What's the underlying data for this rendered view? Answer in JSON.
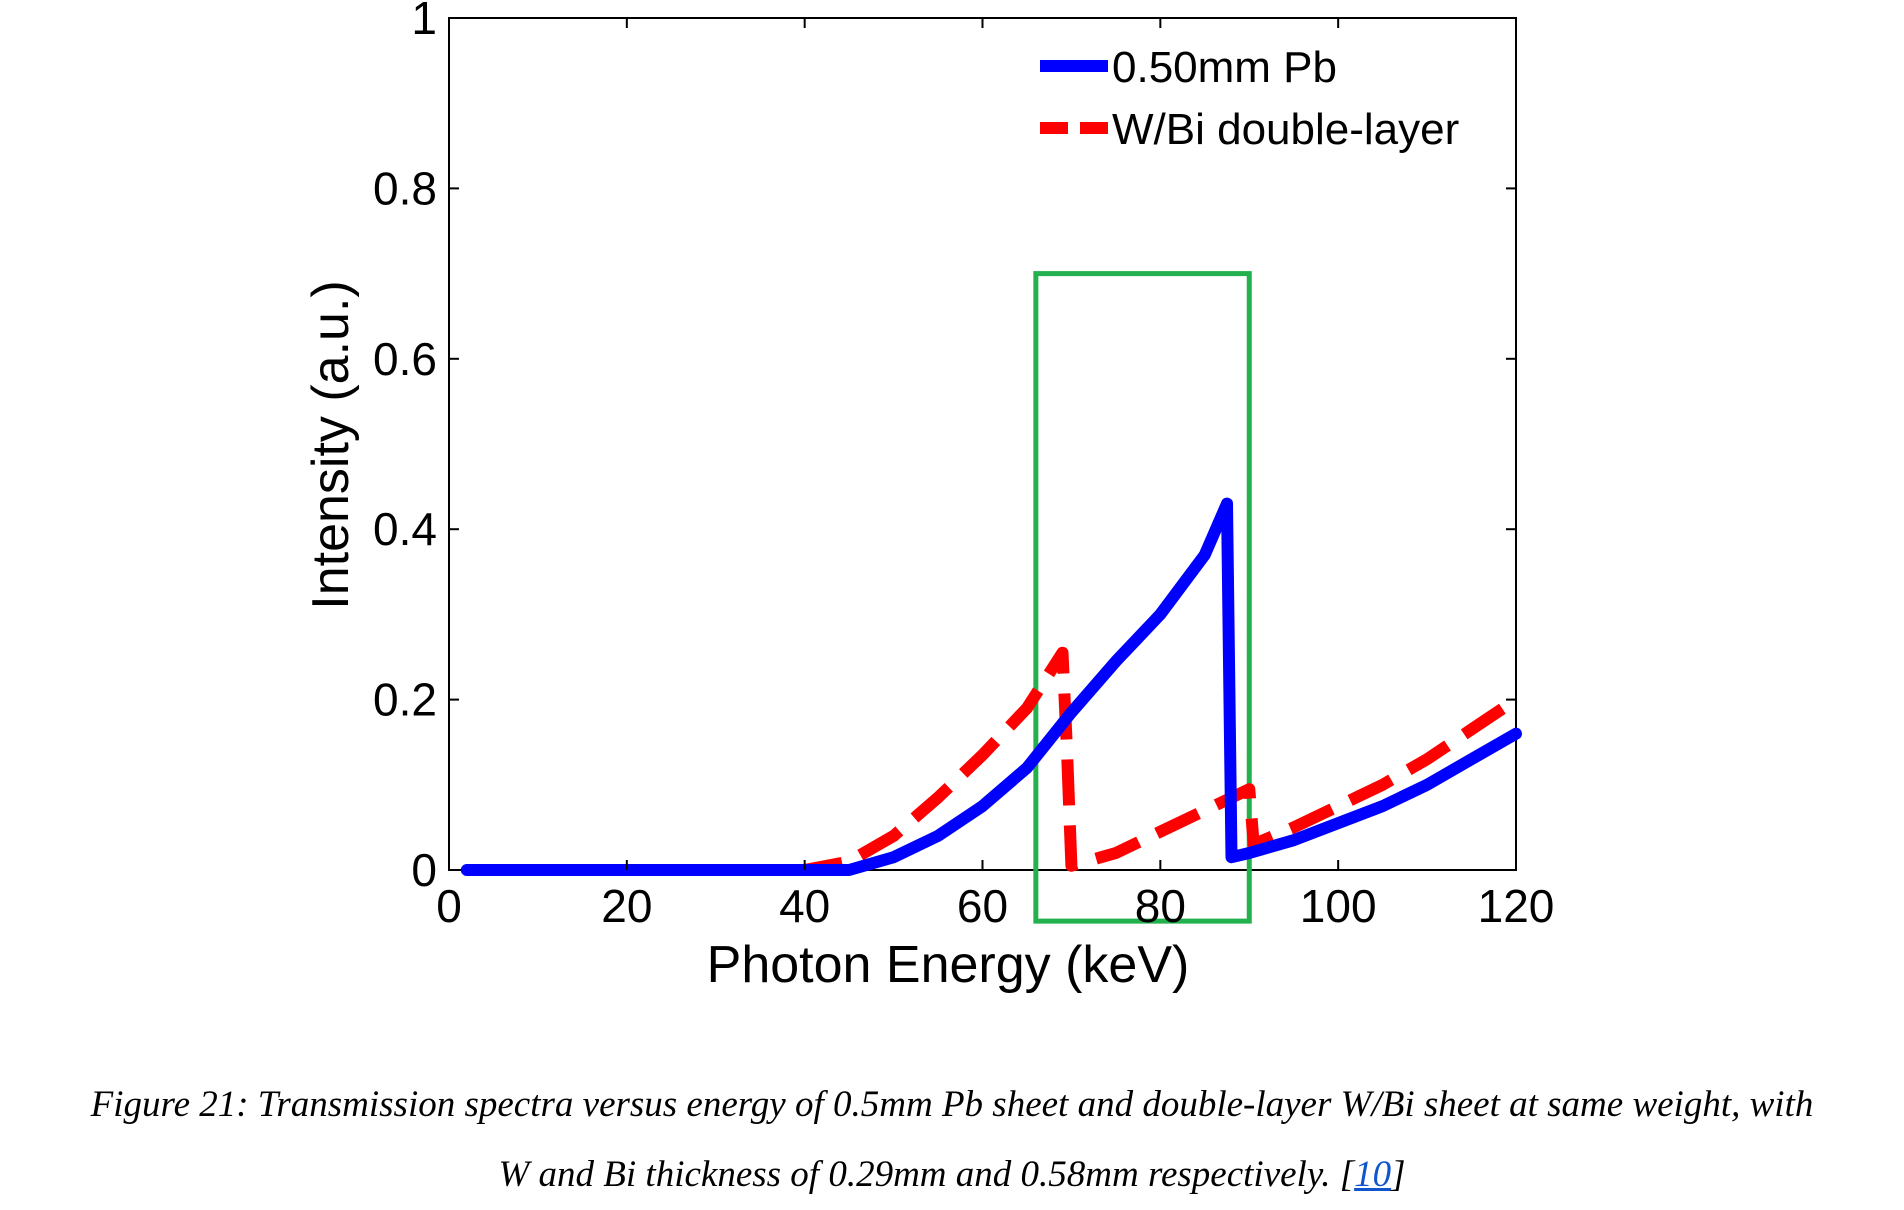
{
  "chart_data": {
    "type": "line",
    "title": "",
    "xlabel": "Photon Energy (keV)",
    "ylabel": "Intensity (a.u.)",
    "xlim": [
      0,
      120
    ],
    "ylim": [
      0,
      1
    ],
    "xticks": [
      0,
      20,
      40,
      60,
      80,
      100,
      120
    ],
    "yticks": [
      0,
      0.2,
      0.4,
      0.6,
      0.8,
      1
    ],
    "ytick_labels": [
      "0",
      "0.2",
      "0.4",
      "0.6",
      "0.8",
      "1"
    ],
    "grid": false,
    "legend_position": "top-right",
    "series": [
      {
        "name": "0.50mm Pb",
        "color": "#0000ff",
        "style": "solid",
        "x": [
          2,
          45,
          50,
          55,
          60,
          65,
          70,
          75,
          80,
          85,
          87.5,
          88,
          90,
          95,
          100,
          105,
          110,
          115,
          120
        ],
        "y": [
          0,
          0,
          0.015,
          0.04,
          0.075,
          0.12,
          0.185,
          0.245,
          0.3,
          0.37,
          0.43,
          0.015,
          0.02,
          0.035,
          0.055,
          0.075,
          0.1,
          0.13,
          0.16
        ]
      },
      {
        "name": "W/Bi double-layer",
        "color": "#ff0000",
        "style": "dashed",
        "x": [
          2,
          40,
          45,
          50,
          55,
          60,
          65,
          69,
          69.5,
          70,
          75,
          80,
          85,
          90,
          90.5,
          95,
          100,
          105,
          110,
          115,
          120
        ],
        "y": [
          0,
          0,
          0.01,
          0.04,
          0.085,
          0.135,
          0.19,
          0.255,
          0.14,
          0.005,
          0.02,
          0.045,
          0.07,
          0.095,
          0.03,
          0.05,
          0.075,
          0.1,
          0.13,
          0.165,
          0.2
        ]
      }
    ],
    "annotations": [
      {
        "type": "rectangle",
        "color": "#22b14c",
        "x_range": [
          66,
          90
        ],
        "y_range": [
          -0.06,
          0.7
        ]
      }
    ]
  },
  "caption": {
    "line1": "Figure 21: Transmission spectra versus energy of 0.5mm Pb sheet and double-layer W/Bi sheet at same weight, with",
    "line2_prefix": "W and Bi thickness of 0.29mm and 0.58mm respectively. [",
    "ref_link": "10",
    "line2_suffix": "]"
  }
}
